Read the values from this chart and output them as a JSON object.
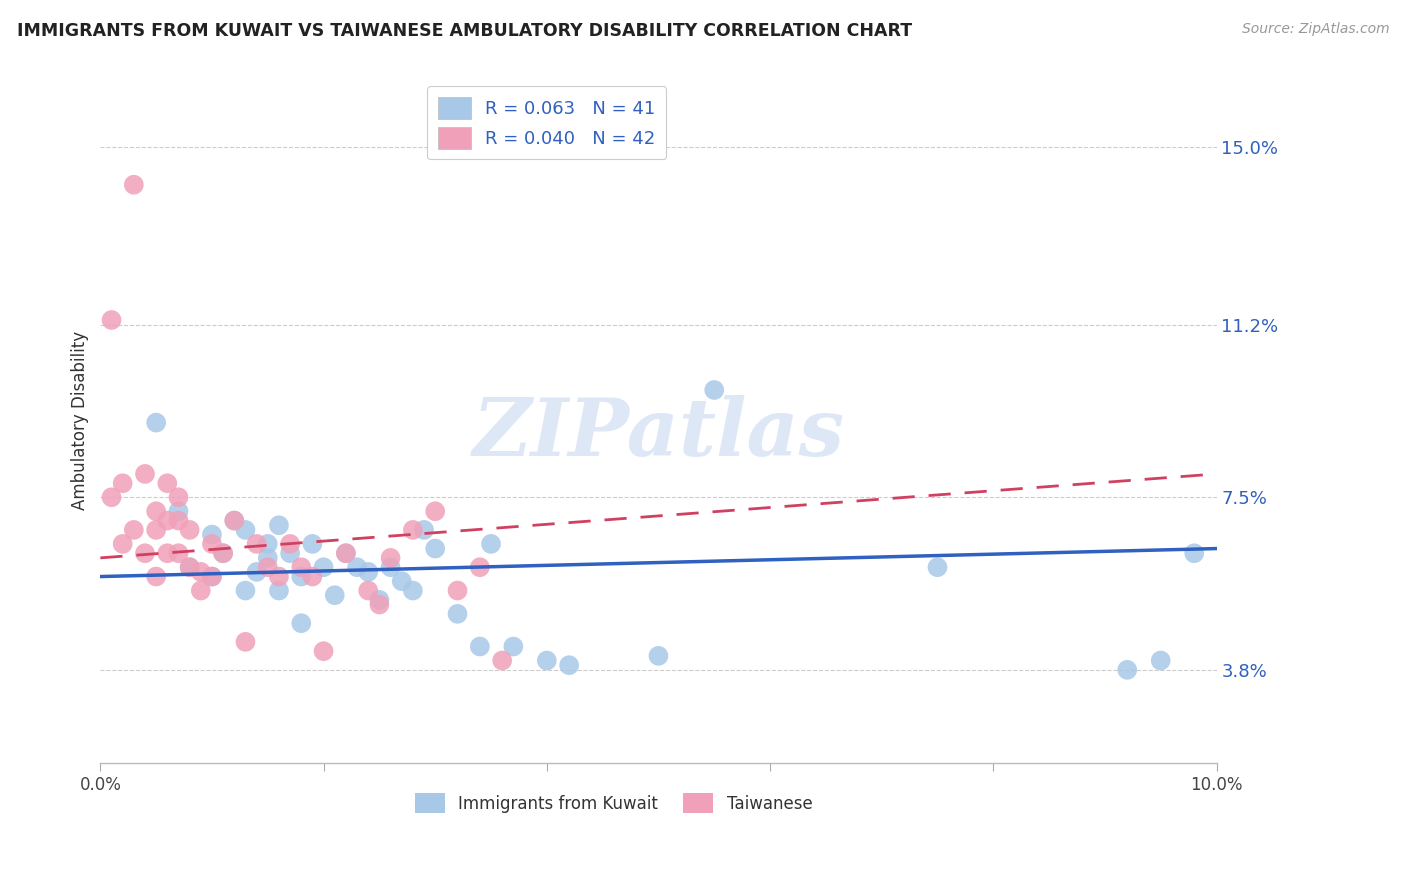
{
  "title": "IMMIGRANTS FROM KUWAIT VS TAIWANESE AMBULATORY DISABILITY CORRELATION CHART",
  "source": "Source: ZipAtlas.com",
  "ylabel": "Ambulatory Disability",
  "ytick_values": [
    0.038,
    0.075,
    0.112,
    0.15
  ],
  "ytick_labels": [
    "3.8%",
    "7.5%",
    "11.2%",
    "15.0%"
  ],
  "xmin": 0.0,
  "xmax": 0.1,
  "ymin": 0.018,
  "ymax": 0.165,
  "watermark": "ZIPatlas",
  "legend_entry1": "R = 0.063   N = 41",
  "legend_entry2": "R = 0.040   N = 42",
  "legend_label1": "Immigrants from Kuwait",
  "legend_label2": "Taiwanese",
  "color_kuwait": "#a8c8e8",
  "color_taiwan": "#f0a0b8",
  "color_line_kuwait": "#3060c0",
  "color_line_taiwan": "#d04060",
  "kuwait_x": [
    0.005,
    0.007,
    0.008,
    0.01,
    0.01,
    0.011,
    0.012,
    0.013,
    0.013,
    0.014,
    0.015,
    0.015,
    0.016,
    0.016,
    0.017,
    0.018,
    0.018,
    0.019,
    0.02,
    0.021,
    0.022,
    0.023,
    0.024,
    0.025,
    0.026,
    0.027,
    0.028,
    0.029,
    0.03,
    0.032,
    0.034,
    0.035,
    0.037,
    0.04,
    0.042,
    0.05,
    0.055,
    0.075,
    0.092,
    0.095,
    0.098
  ],
  "kuwait_y": [
    0.091,
    0.072,
    0.06,
    0.067,
    0.058,
    0.063,
    0.07,
    0.068,
    0.055,
    0.059,
    0.065,
    0.062,
    0.069,
    0.055,
    0.063,
    0.048,
    0.058,
    0.065,
    0.06,
    0.054,
    0.063,
    0.06,
    0.059,
    0.053,
    0.06,
    0.057,
    0.055,
    0.068,
    0.064,
    0.05,
    0.043,
    0.065,
    0.043,
    0.04,
    0.039,
    0.041,
    0.098,
    0.06,
    0.038,
    0.04,
    0.063
  ],
  "taiwan_x": [
    0.001,
    0.001,
    0.002,
    0.002,
    0.003,
    0.003,
    0.004,
    0.004,
    0.005,
    0.005,
    0.005,
    0.006,
    0.006,
    0.006,
    0.007,
    0.007,
    0.007,
    0.008,
    0.008,
    0.009,
    0.009,
    0.01,
    0.01,
    0.011,
    0.012,
    0.013,
    0.014,
    0.015,
    0.016,
    0.017,
    0.018,
    0.019,
    0.02,
    0.022,
    0.024,
    0.025,
    0.026,
    0.028,
    0.03,
    0.032,
    0.034,
    0.036
  ],
  "taiwan_y": [
    0.113,
    0.075,
    0.078,
    0.065,
    0.142,
    0.068,
    0.08,
    0.063,
    0.072,
    0.068,
    0.058,
    0.078,
    0.07,
    0.063,
    0.075,
    0.07,
    0.063,
    0.06,
    0.068,
    0.059,
    0.055,
    0.065,
    0.058,
    0.063,
    0.07,
    0.044,
    0.065,
    0.06,
    0.058,
    0.065,
    0.06,
    0.058,
    0.042,
    0.063,
    0.055,
    0.052,
    0.062,
    0.068,
    0.072,
    0.055,
    0.06,
    0.04
  ]
}
